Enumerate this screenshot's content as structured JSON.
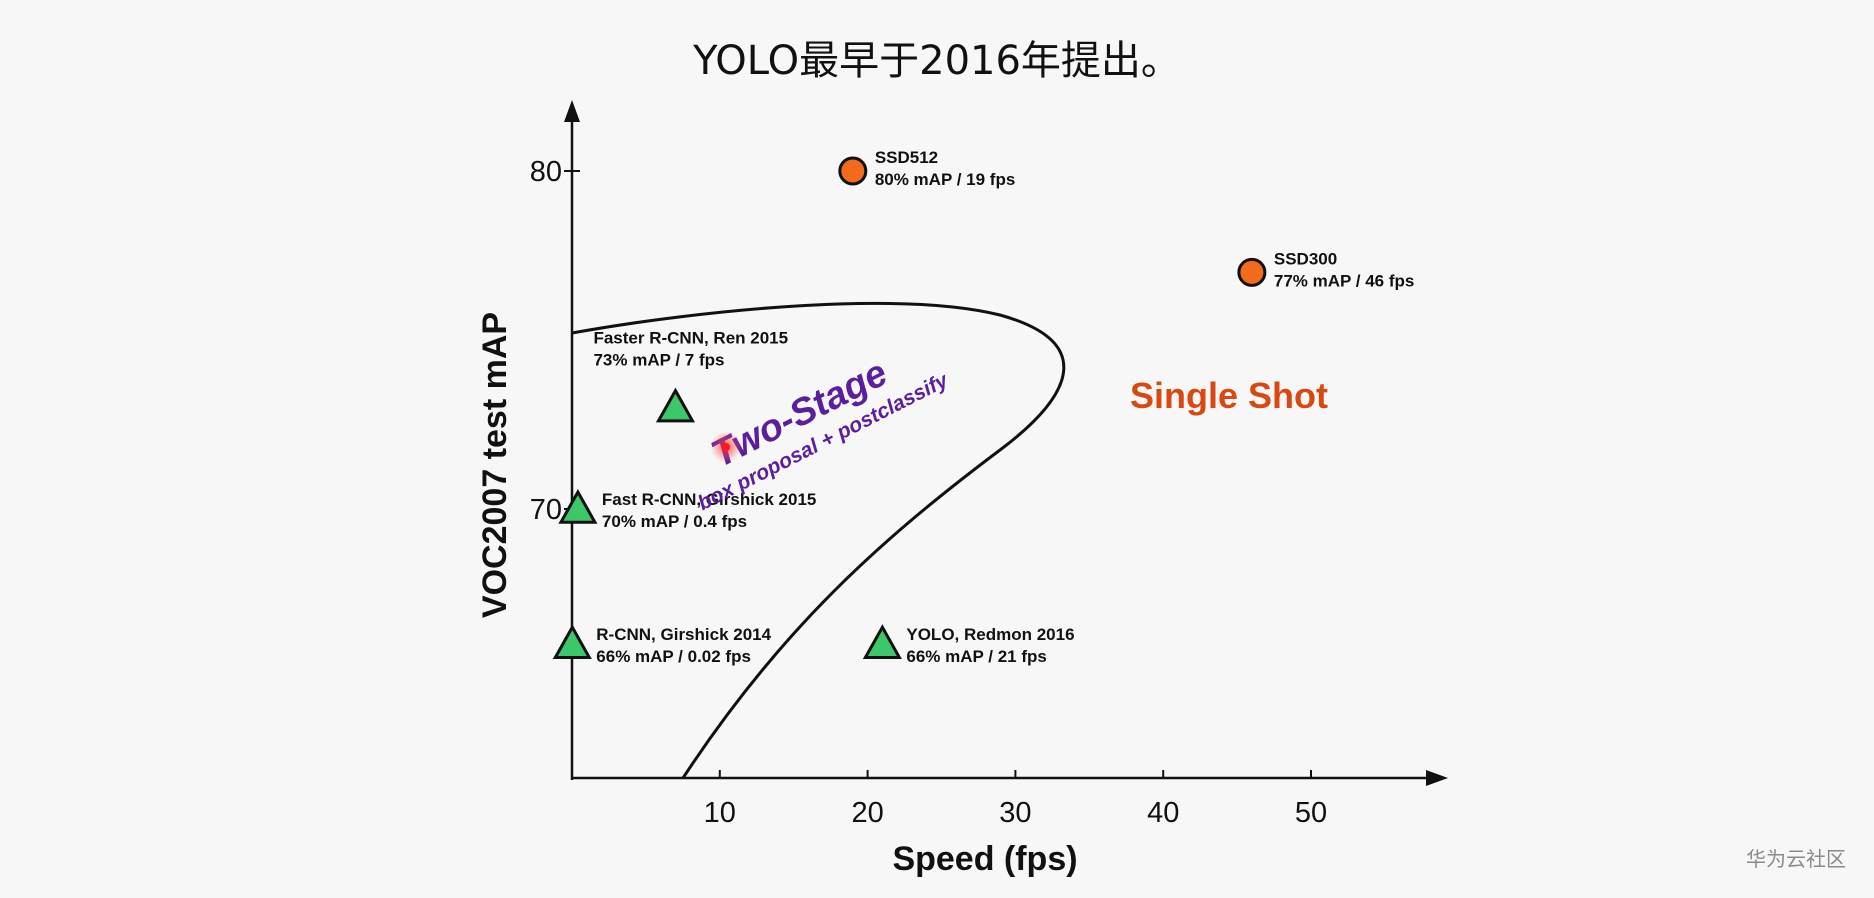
{
  "header": {
    "title": "YOLO最早于2016年提出。"
  },
  "watermark": "华为云社区",
  "chart_data": {
    "type": "scatter",
    "xlabel": "Speed (fps)",
    "ylabel": "VOC2007 test mAP",
    "xlim": [
      0,
      57
    ],
    "ylim": [
      62,
      82
    ],
    "x_ticks": [
      10,
      20,
      30,
      40,
      50
    ],
    "y_ticks": [
      70,
      80
    ],
    "grid": false,
    "points": [
      {
        "name": "SSD512",
        "detail": "80% mAP / 19 fps",
        "x": 19,
        "y": 80,
        "group": "single-shot",
        "marker": "circle"
      },
      {
        "name": "SSD300",
        "detail": "77% mAP / 46 fps",
        "x": 46,
        "y": 77,
        "group": "single-shot",
        "marker": "circle"
      },
      {
        "name": "Faster R-CNN, Ren 2015",
        "detail": "73% mAP / 7 fps",
        "x": 7,
        "y": 73,
        "group": "two-stage",
        "marker": "triangle"
      },
      {
        "name": "Fast R-CNN, Girshick 2015",
        "detail": "70% mAP / 0.4 fps",
        "x": 0.4,
        "y": 70,
        "group": "two-stage",
        "marker": "triangle"
      },
      {
        "name": "R-CNN, Girshick 2014",
        "detail": "66% mAP / 0.02 fps",
        "x": 0.02,
        "y": 66,
        "group": "two-stage",
        "marker": "triangle"
      },
      {
        "name": "YOLO, Redmon 2016",
        "detail": "66% mAP / 21 fps",
        "x": 21,
        "y": 66,
        "group": "single-shot",
        "marker": "triangle"
      }
    ],
    "regions": {
      "two_stage": {
        "label": "Two-Stage",
        "sublabel": "box proposal + postclassify",
        "label_color": "#5b1f9e"
      },
      "single_shot": {
        "label": "Single Shot",
        "label_color": "#d9480f"
      }
    },
    "colors": {
      "circle_fill": "#f26a1b",
      "triangle_fill": "#3cc86a",
      "outline": "#111111"
    }
  }
}
